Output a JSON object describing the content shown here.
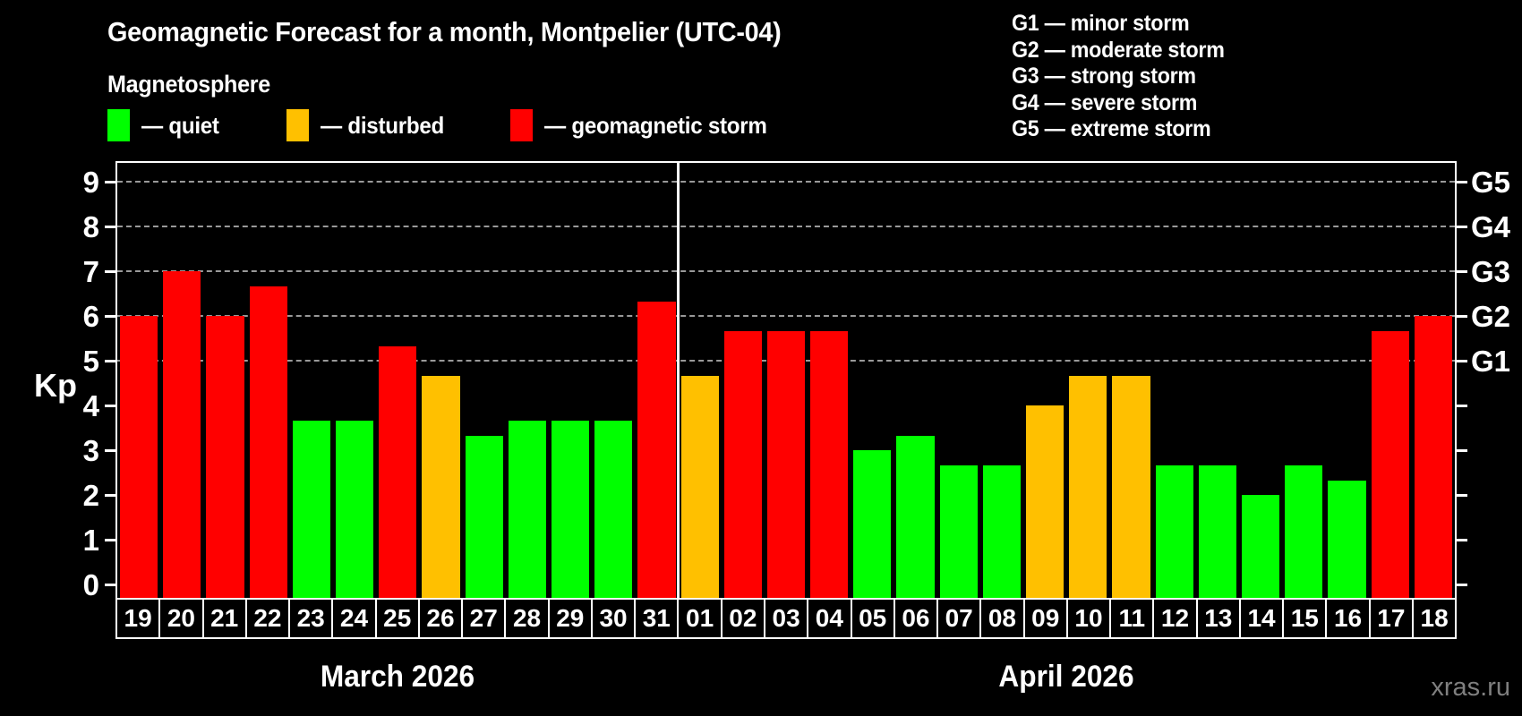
{
  "header": {
    "title": "Geomagnetic Forecast for a month, Montpelier (UTC-04)",
    "subtitle": "Magnetosphere"
  },
  "legend": {
    "items": [
      {
        "status": "quiet",
        "label": "— quiet",
        "color": "#00ff00"
      },
      {
        "status": "disturbed",
        "label": "— disturbed",
        "color": "#ffc000"
      },
      {
        "status": "storm",
        "label": "— geomagnetic storm",
        "color": "#ff0000"
      }
    ]
  },
  "g_scale_legend": {
    "lines": [
      "G1 — minor storm",
      "G2 — moderate storm",
      "G3 — strong storm",
      "G4 — severe storm",
      "G5 — extreme storm"
    ]
  },
  "watermark": "xras.ru",
  "chart_data": {
    "type": "bar",
    "title": "Geomagnetic Forecast for a month, Montpelier (UTC-04)",
    "ylabel": "Kp",
    "ylim": [
      0,
      9
    ],
    "y_ticks": [
      0,
      1,
      2,
      3,
      4,
      5,
      6,
      7,
      8,
      9
    ],
    "gridlines_at": [
      5,
      6,
      7,
      8,
      9
    ],
    "right_axis_labels": [
      {
        "value": 5,
        "label": "G1"
      },
      {
        "value": 6,
        "label": "G2"
      },
      {
        "value": 7,
        "label": "G3"
      },
      {
        "value": 8,
        "label": "G4"
      },
      {
        "value": 9,
        "label": "G5"
      }
    ],
    "status_colors": {
      "quiet": "#00ff00",
      "disturbed": "#ffc000",
      "storm": "#ff0000"
    },
    "sections": [
      {
        "month_label": "March 2026",
        "bars": [
          {
            "day": "19",
            "value": 6.0,
            "status": "storm"
          },
          {
            "day": "20",
            "value": 7.0,
            "status": "storm"
          },
          {
            "day": "21",
            "value": 6.0,
            "status": "storm"
          },
          {
            "day": "22",
            "value": 6.67,
            "status": "storm"
          },
          {
            "day": "23",
            "value": 3.67,
            "status": "quiet"
          },
          {
            "day": "24",
            "value": 3.67,
            "status": "quiet"
          },
          {
            "day": "25",
            "value": 5.33,
            "status": "storm"
          },
          {
            "day": "26",
            "value": 4.67,
            "status": "disturbed"
          },
          {
            "day": "27",
            "value": 3.33,
            "status": "quiet"
          },
          {
            "day": "28",
            "value": 3.67,
            "status": "quiet"
          },
          {
            "day": "29",
            "value": 3.67,
            "status": "quiet"
          },
          {
            "day": "30",
            "value": 3.67,
            "status": "quiet"
          },
          {
            "day": "31",
            "value": 6.33,
            "status": "storm"
          }
        ]
      },
      {
        "month_label": "April 2026",
        "bars": [
          {
            "day": "01",
            "value": 4.67,
            "status": "disturbed"
          },
          {
            "day": "02",
            "value": 5.67,
            "status": "storm"
          },
          {
            "day": "03",
            "value": 5.67,
            "status": "storm"
          },
          {
            "day": "04",
            "value": 5.67,
            "status": "storm"
          },
          {
            "day": "05",
            "value": 3.0,
            "status": "quiet"
          },
          {
            "day": "06",
            "value": 3.33,
            "status": "quiet"
          },
          {
            "day": "07",
            "value": 2.67,
            "status": "quiet"
          },
          {
            "day": "08",
            "value": 2.67,
            "status": "quiet"
          },
          {
            "day": "09",
            "value": 4.0,
            "status": "disturbed"
          },
          {
            "day": "10",
            "value": 4.67,
            "status": "disturbed"
          },
          {
            "day": "11",
            "value": 4.67,
            "status": "disturbed"
          },
          {
            "day": "12",
            "value": 2.67,
            "status": "quiet"
          },
          {
            "day": "13",
            "value": 2.67,
            "status": "quiet"
          },
          {
            "day": "14",
            "value": 2.0,
            "status": "quiet"
          },
          {
            "day": "15",
            "value": 2.67,
            "status": "quiet"
          },
          {
            "day": "16",
            "value": 2.33,
            "status": "quiet"
          },
          {
            "day": "17",
            "value": 5.67,
            "status": "storm"
          },
          {
            "day": "18",
            "value": 6.0,
            "status": "storm"
          }
        ]
      }
    ]
  }
}
